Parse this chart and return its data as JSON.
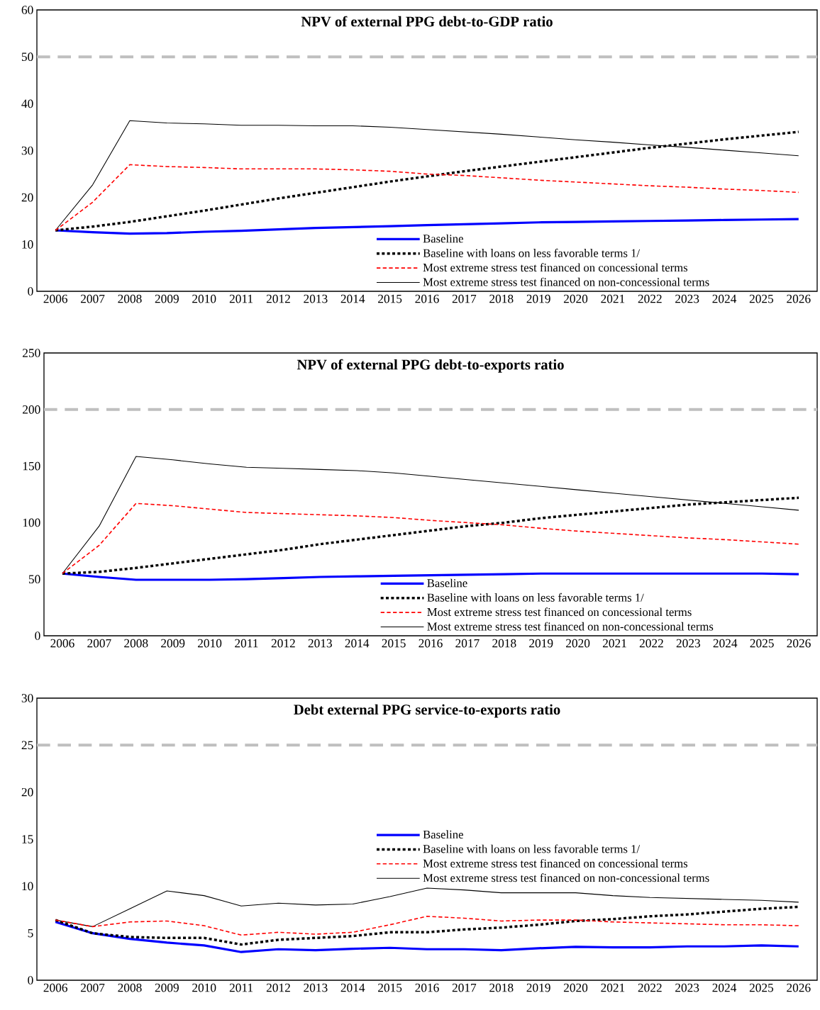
{
  "chart_data": [
    {
      "type": "line",
      "title": "NPV of external PPG debt-to-GDP ratio",
      "categories": [
        "2006",
        "2007",
        "2008",
        "2009",
        "2010",
        "2011",
        "2012",
        "2013",
        "2014",
        "2015",
        "2016",
        "2017",
        "2018",
        "2019",
        "2020",
        "2021",
        "2022",
        "2023",
        "2024",
        "2025",
        "2026"
      ],
      "ylim": [
        0,
        60
      ],
      "yticks": [
        0,
        10,
        20,
        30,
        40,
        50,
        60
      ],
      "legend": "bottom",
      "ref_lines": [
        {
          "axis": "y",
          "value": 50,
          "color": "#bfbfbf",
          "line_style": "dashed"
        }
      ],
      "series": [
        {
          "name": "Baseline",
          "color": "#0000ff",
          "line_style": "solid",
          "values": [
            13,
            12.6,
            12.3,
            12.4,
            12.7,
            12.9,
            13.2,
            13.5,
            13.7,
            13.9,
            14.1,
            14.3,
            14.5,
            14.7,
            14.8,
            14.9,
            15.0,
            15.1,
            15.2,
            15.3,
            15.4
          ]
        },
        {
          "name": "Baseline with loans on less favorable terms 1/",
          "color": "#000000",
          "line_style": "dotted",
          "values": [
            13,
            13.8,
            14.8,
            16,
            17.2,
            18.5,
            19.8,
            21,
            22.2,
            23.4,
            24.5,
            25.6,
            26.6,
            27.6,
            28.6,
            29.6,
            30.6,
            31.5,
            32.4,
            33.2,
            34
          ]
        },
        {
          "name": "Most extreme stress test financed on concessional terms",
          "color": "#ff0000",
          "line_style": "dashed",
          "values": [
            13,
            19,
            27,
            26.6,
            26.4,
            26.1,
            26.1,
            26.1,
            25.9,
            25.6,
            25,
            24.7,
            24.2,
            23.7,
            23.3,
            22.9,
            22.5,
            22.2,
            21.8,
            21.5,
            21.1
          ]
        },
        {
          "name": "Most extreme stress test financed on non-concessional terms",
          "color": "#000000",
          "line_style": "solid",
          "values": [
            13,
            22.7,
            36.4,
            35.9,
            35.7,
            35.4,
            35.4,
            35.3,
            35.3,
            35.0,
            34.5,
            34.0,
            33.5,
            32.9,
            32.3,
            31.8,
            31.2,
            30.7,
            30.1,
            29.5,
            28.9
          ]
        }
      ]
    },
    {
      "type": "line",
      "title": "NPV of external PPG debt-to-exports ratio",
      "categories": [
        "2006",
        "2007",
        "2008",
        "2009",
        "2010",
        "2011",
        "2012",
        "2013",
        "2014",
        "2015",
        "2016",
        "2017",
        "2018",
        "2019",
        "2020",
        "2021",
        "2022",
        "2023",
        "2024",
        "2025",
        "2026"
      ],
      "ylim": [
        0,
        250
      ],
      "yticks": [
        0,
        50,
        100,
        150,
        200,
        250
      ],
      "legend": "bottom",
      "ref_lines": [
        {
          "axis": "y",
          "value": 200,
          "color": "#bfbfbf",
          "line_style": "dashed"
        }
      ],
      "series": [
        {
          "name": "Baseline",
          "color": "#0000ff",
          "line_style": "solid",
          "values": [
            55,
            52,
            49.5,
            49.5,
            49.5,
            50,
            51,
            52,
            52.5,
            53,
            53.5,
            54,
            54.5,
            55,
            55,
            55,
            55,
            55,
            55,
            55,
            54.5
          ]
        },
        {
          "name": "Baseline with loans on less favorable terms 1/",
          "color": "#000000",
          "line_style": "dotted",
          "values": [
            55,
            56.5,
            60,
            64,
            68,
            72,
            76,
            81,
            85,
            89,
            93,
            97,
            100,
            104,
            107,
            110,
            113,
            116,
            118,
            120,
            122
          ]
        },
        {
          "name": "Most extreme stress test financed on concessional terms",
          "color": "#ff0000",
          "line_style": "dashed",
          "values": [
            55,
            80,
            117,
            115,
            112,
            109,
            108,
            107,
            106,
            104.5,
            102,
            100,
            98,
            95,
            92.5,
            90.5,
            88.5,
            86.5,
            85,
            83,
            81
          ]
        },
        {
          "name": "Most extreme stress test financed on non-concessional terms",
          "color": "#000000",
          "line_style": "solid",
          "values": [
            55,
            97,
            158.5,
            155.5,
            152,
            149,
            148,
            147,
            146,
            144,
            141,
            138,
            135,
            132,
            129,
            126,
            123,
            120,
            117,
            114,
            111
          ]
        }
      ]
    },
    {
      "type": "line",
      "title": "Debt external PPG service-to-exports ratio",
      "categories": [
        "2006",
        "2007",
        "2008",
        "2009",
        "2010",
        "2011",
        "2012",
        "2013",
        "2014",
        "2015",
        "2016",
        "2017",
        "2018",
        "2019",
        "2020",
        "2021",
        "2022",
        "2023",
        "2024",
        "2025",
        "2026"
      ],
      "ylim": [
        0,
        30
      ],
      "yticks": [
        0,
        5,
        10,
        15,
        20,
        25,
        30
      ],
      "legend": "right",
      "ref_lines": [
        {
          "axis": "y",
          "value": 25,
          "color": "#bfbfbf",
          "line_style": "dashed"
        }
      ],
      "series": [
        {
          "name": "Baseline",
          "color": "#0000ff",
          "line_style": "solid",
          "values": [
            6.2,
            5.0,
            4.4,
            4.0,
            3.7,
            3.0,
            3.3,
            3.2,
            3.35,
            3.45,
            3.3,
            3.3,
            3.2,
            3.4,
            3.55,
            3.5,
            3.5,
            3.6,
            3.6,
            3.7,
            3.6
          ]
        },
        {
          "name": "Baseline with loans on less favorable terms 1/",
          "color": "#000000",
          "line_style": "dotted",
          "values": [
            6.4,
            5.0,
            4.6,
            4.5,
            4.5,
            3.8,
            4.3,
            4.5,
            4.7,
            5.1,
            5.1,
            5.4,
            5.6,
            5.9,
            6.3,
            6.5,
            6.8,
            7.0,
            7.3,
            7.6,
            7.8
          ]
        },
        {
          "name": "Most extreme stress test financed on concessional terms",
          "color": "#ff0000",
          "line_style": "dashed",
          "values": [
            6.4,
            5.7,
            6.2,
            6.3,
            5.8,
            4.8,
            5.1,
            4.9,
            5.1,
            5.9,
            6.8,
            6.6,
            6.3,
            6.4,
            6.4,
            6.2,
            6.1,
            6.0,
            5.9,
            5.9,
            5.8
          ]
        },
        {
          "name": "Most extreme stress test financed on non-concessional terms",
          "color": "#000000",
          "line_style": "solid",
          "values": [
            6.4,
            5.7,
            7.6,
            9.5,
            9.0,
            7.9,
            8.2,
            8.0,
            8.1,
            8.9,
            9.8,
            9.6,
            9.3,
            9.3,
            9.3,
            9.0,
            8.8,
            8.7,
            8.6,
            8.5,
            8.3
          ]
        }
      ]
    }
  ]
}
